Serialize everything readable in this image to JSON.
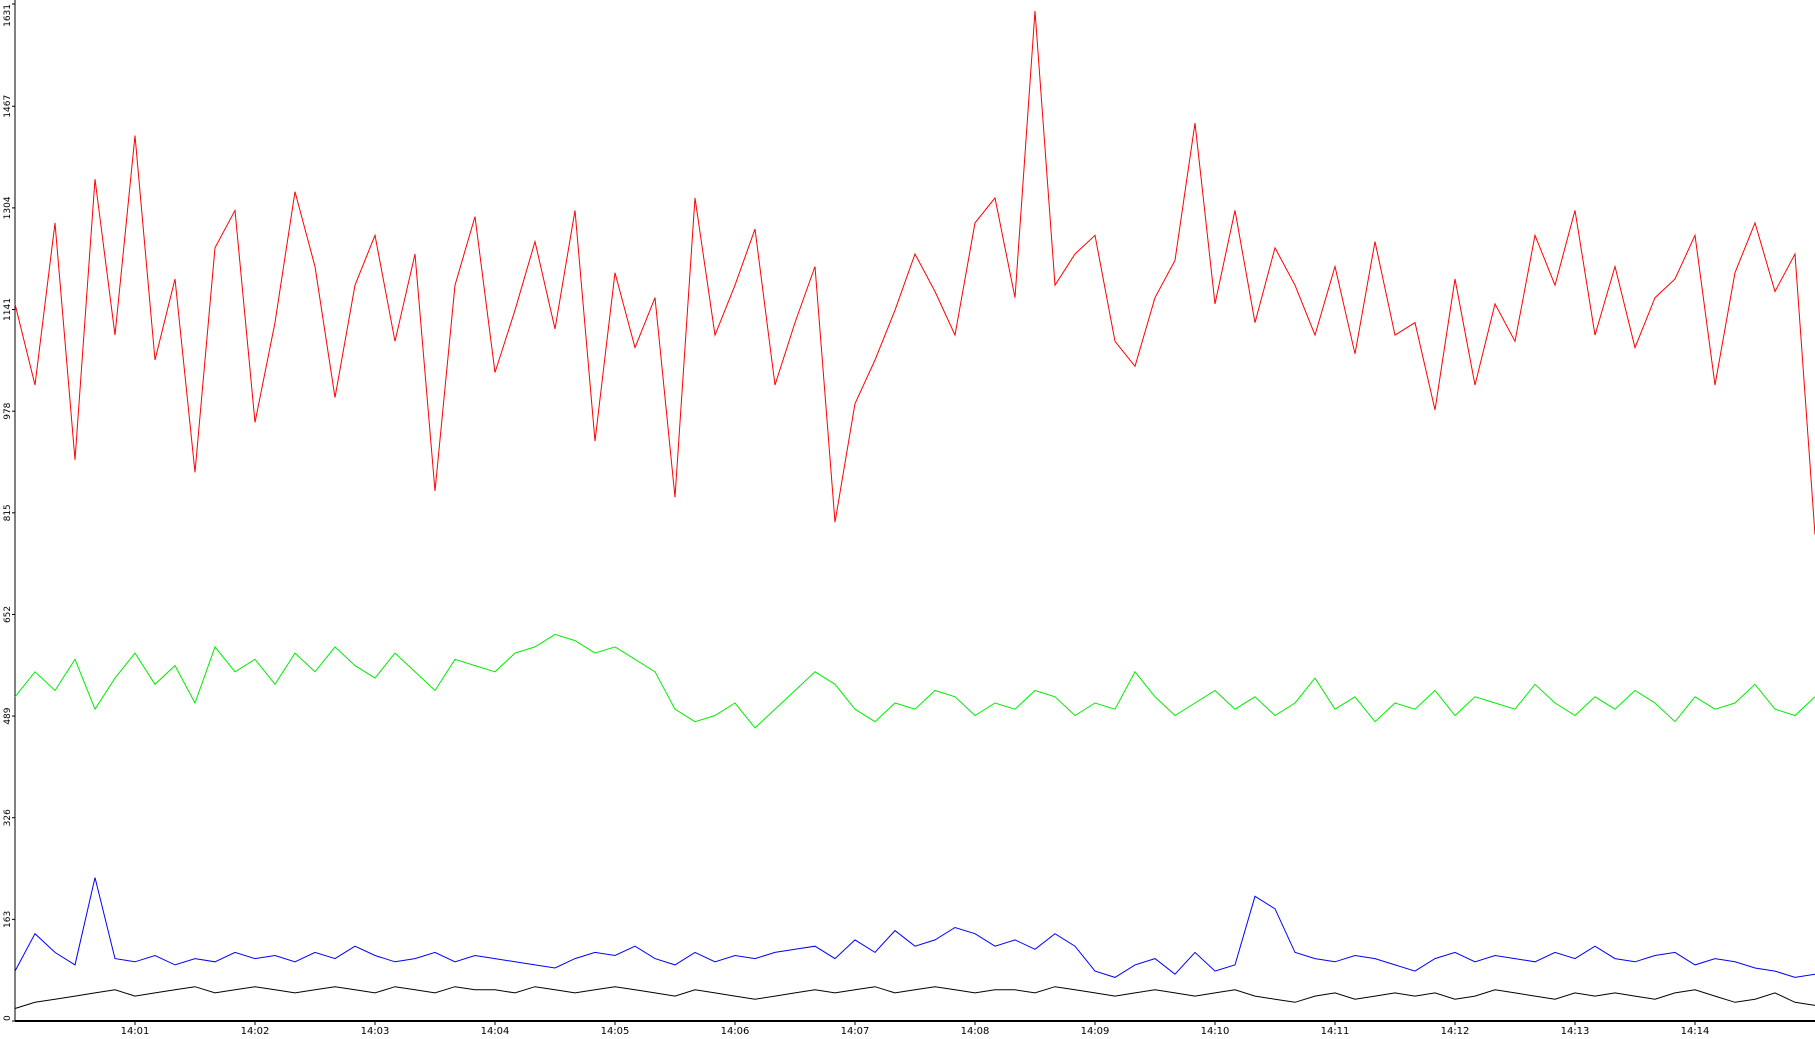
{
  "chart_data": {
    "type": "line",
    "categories": [
      null,
      null,
      null,
      null,
      null,
      null,
      "14:01",
      null,
      null,
      null,
      null,
      null,
      "14:02",
      null,
      null,
      null,
      null,
      null,
      "14:03",
      null,
      null,
      null,
      null,
      null,
      "14:04",
      null,
      null,
      null,
      null,
      null,
      "14:05",
      null,
      null,
      null,
      null,
      null,
      "14:06",
      null,
      null,
      null,
      null,
      null,
      "14:07",
      null,
      null,
      null,
      null,
      null,
      "14:08",
      null,
      null,
      null,
      null,
      null,
      "14:09",
      null,
      null,
      null,
      null,
      null,
      "14:10",
      null,
      null,
      null,
      null,
      null,
      "14:11",
      null,
      null,
      null,
      null,
      null,
      "14:12",
      null,
      null,
      null,
      null,
      null,
      "14:13",
      null,
      null,
      null,
      null,
      null,
      "14:14",
      null,
      null,
      null,
      null,
      null,
      null
    ],
    "ylim": [
      0,
      1631
    ],
    "yticks": [
      0,
      163,
      326,
      489,
      652,
      815,
      978,
      1141,
      1304,
      1467,
      1631
    ],
    "series": [
      {
        "color": "#ff0000",
        "values": [
          1150,
          1020,
          1280,
          900,
          1350,
          1100,
          1420,
          1060,
          1190,
          880,
          1240,
          1300,
          960,
          1120,
          1330,
          1210,
          1000,
          1180,
          1260,
          1090,
          1230,
          850,
          1180,
          1290,
          1040,
          1140,
          1250,
          1110,
          1300,
          930,
          1200,
          1080,
          1160,
          840,
          1320,
          1100,
          1180,
          1270,
          1020,
          1120,
          1210,
          800,
          990,
          1060,
          1140,
          1230,
          1170,
          1100,
          1280,
          1320,
          1160,
          1620,
          1180,
          1230,
          1260,
          1090,
          1050,
          1160,
          1220,
          1440,
          1150,
          1300,
          1120,
          1240,
          1180,
          1100,
          1210,
          1070,
          1250,
          1100,
          1120,
          980,
          1190,
          1020,
          1150,
          1090,
          1260,
          1180,
          1300,
          1100,
          1210,
          1080,
          1160,
          1190,
          1260,
          1020,
          1200,
          1280,
          1170,
          1230,
          780
        ]
      },
      {
        "color": "#00ee00",
        "values": [
          520,
          560,
          530,
          580,
          500,
          550,
          590,
          540,
          570,
          510,
          600,
          560,
          580,
          540,
          590,
          560,
          600,
          570,
          550,
          590,
          560,
          530,
          580,
          570,
          560,
          590,
          600,
          620,
          610,
          590,
          600,
          580,
          560,
          500,
          480,
          490,
          510,
          470,
          500,
          530,
          560,
          540,
          500,
          480,
          510,
          500,
          530,
          520,
          490,
          510,
          500,
          530,
          520,
          490,
          510,
          500,
          560,
          520,
          490,
          510,
          530,
          500,
          520,
          490,
          510,
          550,
          500,
          520,
          480,
          510,
          500,
          530,
          490,
          520,
          510,
          500,
          540,
          510,
          490,
          520,
          500,
          530,
          510,
          480,
          520,
          500,
          510,
          540,
          500,
          490,
          520
        ]
      },
      {
        "color": "#0000ff",
        "values": [
          80,
          140,
          110,
          90,
          230,
          100,
          95,
          105,
          90,
          100,
          95,
          110,
          100,
          105,
          95,
          110,
          100,
          120,
          105,
          95,
          100,
          110,
          95,
          105,
          100,
          95,
          90,
          85,
          100,
          110,
          105,
          120,
          100,
          90,
          110,
          95,
          105,
          100,
          110,
          115,
          120,
          100,
          130,
          110,
          145,
          120,
          130,
          150,
          140,
          120,
          130,
          115,
          140,
          120,
          80,
          70,
          90,
          100,
          75,
          110,
          80,
          90,
          200,
          180,
          110,
          100,
          95,
          105,
          100,
          90,
          80,
          100,
          110,
          95,
          105,
          100,
          95,
          110,
          100,
          120,
          100,
          95,
          105,
          110,
          90,
          100,
          95,
          85,
          80,
          70,
          75
        ]
      },
      {
        "color": "#000000",
        "values": [
          20,
          30,
          35,
          40,
          45,
          50,
          40,
          45,
          50,
          55,
          45,
          50,
          55,
          50,
          45,
          50,
          55,
          50,
          45,
          55,
          50,
          45,
          55,
          50,
          50,
          45,
          55,
          50,
          45,
          50,
          55,
          50,
          45,
          40,
          50,
          45,
          40,
          35,
          40,
          45,
          50,
          45,
          50,
          55,
          45,
          50,
          55,
          50,
          45,
          50,
          50,
          45,
          55,
          50,
          45,
          40,
          45,
          50,
          45,
          40,
          45,
          50,
          40,
          35,
          30,
          40,
          45,
          35,
          40,
          45,
          40,
          45,
          35,
          40,
          50,
          45,
          40,
          35,
          45,
          40,
          45,
          40,
          35,
          45,
          50,
          40,
          30,
          35,
          45,
          30,
          25
        ]
      }
    ]
  }
}
